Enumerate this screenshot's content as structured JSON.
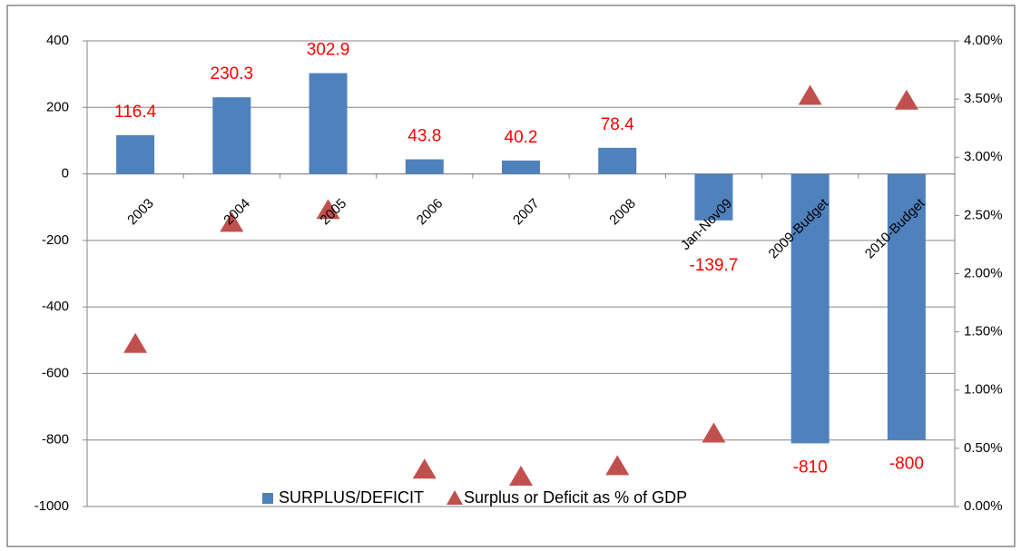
{
  "chart_data": {
    "type": "bar_line",
    "categories": [
      "2003",
      "2004",
      "2005",
      "2006",
      "2007",
      "2008",
      "Jan-Nov09",
      "2009-Budget",
      "2010-Budget"
    ],
    "series": [
      {
        "name": "SURPLUS/DEFICIT",
        "color": "#4f81bd",
        "type": "bar",
        "values": [
          116.4,
          230.3,
          302.9,
          43.8,
          40.2,
          78.4,
          -139.7,
          -810,
          -800
        ]
      },
      {
        "name": "Surplus or Deficit as % of GDP",
        "color": "#c0504d",
        "type": "marker",
        "axis": "y2",
        "values": [
          1.39,
          2.43,
          2.54,
          0.31,
          0.25,
          0.34,
          0.62,
          3.52,
          3.48
        ]
      }
    ],
    "ylim": [
      -1000,
      400
    ],
    "yticks": [
      -1000,
      -800,
      -600,
      -400,
      -200,
      0,
      200,
      400
    ],
    "y2lim": [
      0,
      4
    ],
    "y2ticks": [
      {
        "value": 0,
        "label": "0.00%"
      },
      {
        "value": 0.5,
        "label": "0.50%"
      },
      {
        "value": 1,
        "label": "1.00%"
      },
      {
        "value": 1.5,
        "label": "1.50%"
      },
      {
        "value": 2,
        "label": "2.00%"
      },
      {
        "value": 2.5,
        "label": "2.50%"
      },
      {
        "value": 3,
        "label": "3.00%"
      },
      {
        "value": 3.5,
        "label": "3.50%"
      },
      {
        "value": 4,
        "label": "4.00%"
      }
    ],
    "grid": true,
    "legend": "bottom"
  }
}
